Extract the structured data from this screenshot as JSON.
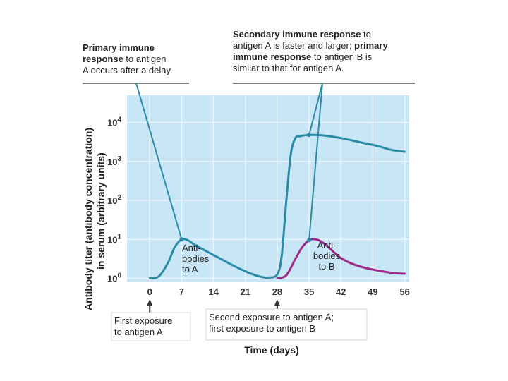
{
  "chart_data": {
    "type": "line",
    "title": "",
    "xlabel": "Time (days)",
    "ylabel_line1": "Antibody titer (antibody concentration)",
    "ylabel_line2": "in serum (arbitrary units)",
    "x_ticks": [
      "0",
      "7",
      "14",
      "21",
      "28",
      "35",
      "42",
      "49",
      "56"
    ],
    "y_ticks": [
      {
        "base": "10",
        "exp": "0"
      },
      {
        "base": "10",
        "exp": "1"
      },
      {
        "base": "10",
        "exp": "2"
      },
      {
        "base": "10",
        "exp": "3"
      },
      {
        "base": "10",
        "exp": "4"
      }
    ],
    "xlim": [
      -5,
      57
    ],
    "ylim_log10": [
      -0.1,
      4.7
    ],
    "series": [
      {
        "name": "Antibodies to A",
        "label_lines": [
          "Anti-",
          "bodies",
          "to A"
        ],
        "color": "#2b8ba6",
        "points": [
          [
            0,
            0
          ],
          [
            2,
            0.05
          ],
          [
            4,
            0.4
          ],
          [
            5.5,
            0.8
          ],
          [
            7,
            1.0
          ],
          [
            8.5,
            0.97
          ],
          [
            10,
            0.85
          ],
          [
            14,
            0.6
          ],
          [
            18,
            0.35
          ],
          [
            21,
            0.18
          ],
          [
            24,
            0.05
          ],
          [
            26,
            0.02
          ],
          [
            28,
            0.1
          ],
          [
            29,
            0.6
          ],
          [
            30,
            2.0
          ],
          [
            31,
            3.2
          ],
          [
            32,
            3.6
          ],
          [
            33,
            3.65
          ],
          [
            35,
            3.68
          ],
          [
            38,
            3.67
          ],
          [
            42,
            3.6
          ],
          [
            46,
            3.5
          ],
          [
            50,
            3.4
          ],
          [
            53,
            3.3
          ],
          [
            56,
            3.25
          ]
        ]
      },
      {
        "name": "Antibodies to B",
        "label_lines": [
          "Anti-",
          "bodies",
          "to B"
        ],
        "color": "#9c2a8a",
        "points": [
          [
            28,
            0
          ],
          [
            30,
            0.08
          ],
          [
            32,
            0.5
          ],
          [
            33.5,
            0.8
          ],
          [
            35,
            0.98
          ],
          [
            36.5,
            1.0
          ],
          [
            38,
            0.92
          ],
          [
            40,
            0.72
          ],
          [
            42,
            0.52
          ],
          [
            45,
            0.35
          ],
          [
            48,
            0.25
          ],
          [
            51,
            0.18
          ],
          [
            54,
            0.13
          ],
          [
            56,
            0.12
          ]
        ]
      }
    ],
    "exposures": [
      {
        "day": 0,
        "label_lines": [
          "First exposure",
          "to antigen A"
        ]
      },
      {
        "day": 28,
        "label_lines": [
          "Second exposure to antigen A;",
          "first exposure to antigen B"
        ]
      }
    ],
    "annotations": [
      {
        "target": "primary-peak",
        "lines": [
          [
            {
              "t": "Primary immune",
              "b": true
            }
          ],
          [
            {
              "t": "response",
              "b": true
            },
            {
              "t": " to antigen",
              "b": false
            }
          ],
          [
            {
              "t": "A occurs after a delay.",
              "b": false
            }
          ]
        ]
      },
      {
        "target": "secondary-peak",
        "lines": [
          [
            {
              "t": "Secondary immune response",
              "b": true
            },
            {
              "t": "  to",
              "b": false
            }
          ],
          [
            {
              "t": "antigen A is faster and larger; ",
              "b": false
            },
            {
              "t": "primary",
              "b": true
            }
          ],
          [
            {
              "t": "immune response",
              "b": true
            },
            {
              "t": " to antigen B is",
              "b": false
            }
          ],
          [
            {
              "t": "similar to that for antigen A.",
              "b": false
            }
          ]
        ]
      }
    ],
    "colors": {
      "plot_bg": "#c9e6f7",
      "grid": "#eef7fd",
      "annotation_line": "#2b8ba6"
    }
  }
}
